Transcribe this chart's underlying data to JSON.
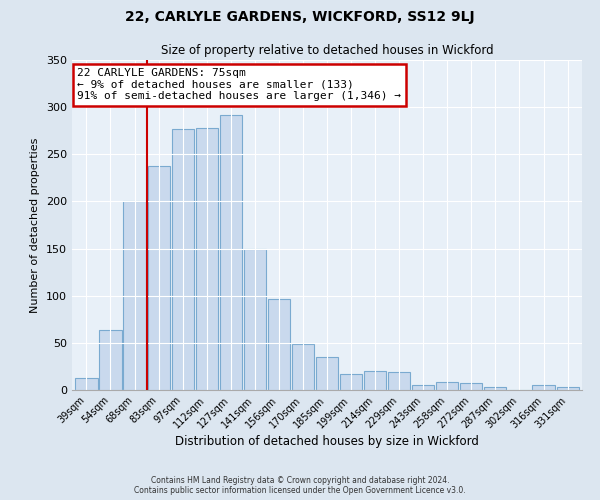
{
  "title": "22, CARLYLE GARDENS, WICKFORD, SS12 9LJ",
  "subtitle": "Size of property relative to detached houses in Wickford",
  "xlabel": "Distribution of detached houses by size in Wickford",
  "ylabel": "Number of detached properties",
  "bar_labels": [
    "39sqm",
    "54sqm",
    "68sqm",
    "83sqm",
    "97sqm",
    "112sqm",
    "127sqm",
    "141sqm",
    "156sqm",
    "170sqm",
    "185sqm",
    "199sqm",
    "214sqm",
    "229sqm",
    "243sqm",
    "258sqm",
    "272sqm",
    "287sqm",
    "302sqm",
    "316sqm",
    "331sqm"
  ],
  "bar_heights": [
    13,
    64,
    200,
    238,
    277,
    278,
    292,
    150,
    97,
    49,
    35,
    17,
    20,
    19,
    5,
    8,
    7,
    3,
    0,
    5,
    3
  ],
  "bar_color": "#c9d9ed",
  "bar_edge_color": "#7aaad0",
  "ylim": [
    0,
    350
  ],
  "yticks": [
    0,
    50,
    100,
    150,
    200,
    250,
    300,
    350
  ],
  "vline_x": 2.5,
  "vline_color": "#cc0000",
  "annotation_title": "22 CARLYLE GARDENS: 75sqm",
  "annotation_line1": "← 9% of detached houses are smaller (133)",
  "annotation_line2": "91% of semi-detached houses are larger (1,346) →",
  "annotation_box_color": "#ffffff",
  "annotation_box_edge": "#cc0000",
  "footer1": "Contains HM Land Registry data © Crown copyright and database right 2024.",
  "footer2": "Contains public sector information licensed under the Open Government Licence v3.0.",
  "bg_color": "#dce6f0",
  "plot_bg_color": "#e8f0f8"
}
